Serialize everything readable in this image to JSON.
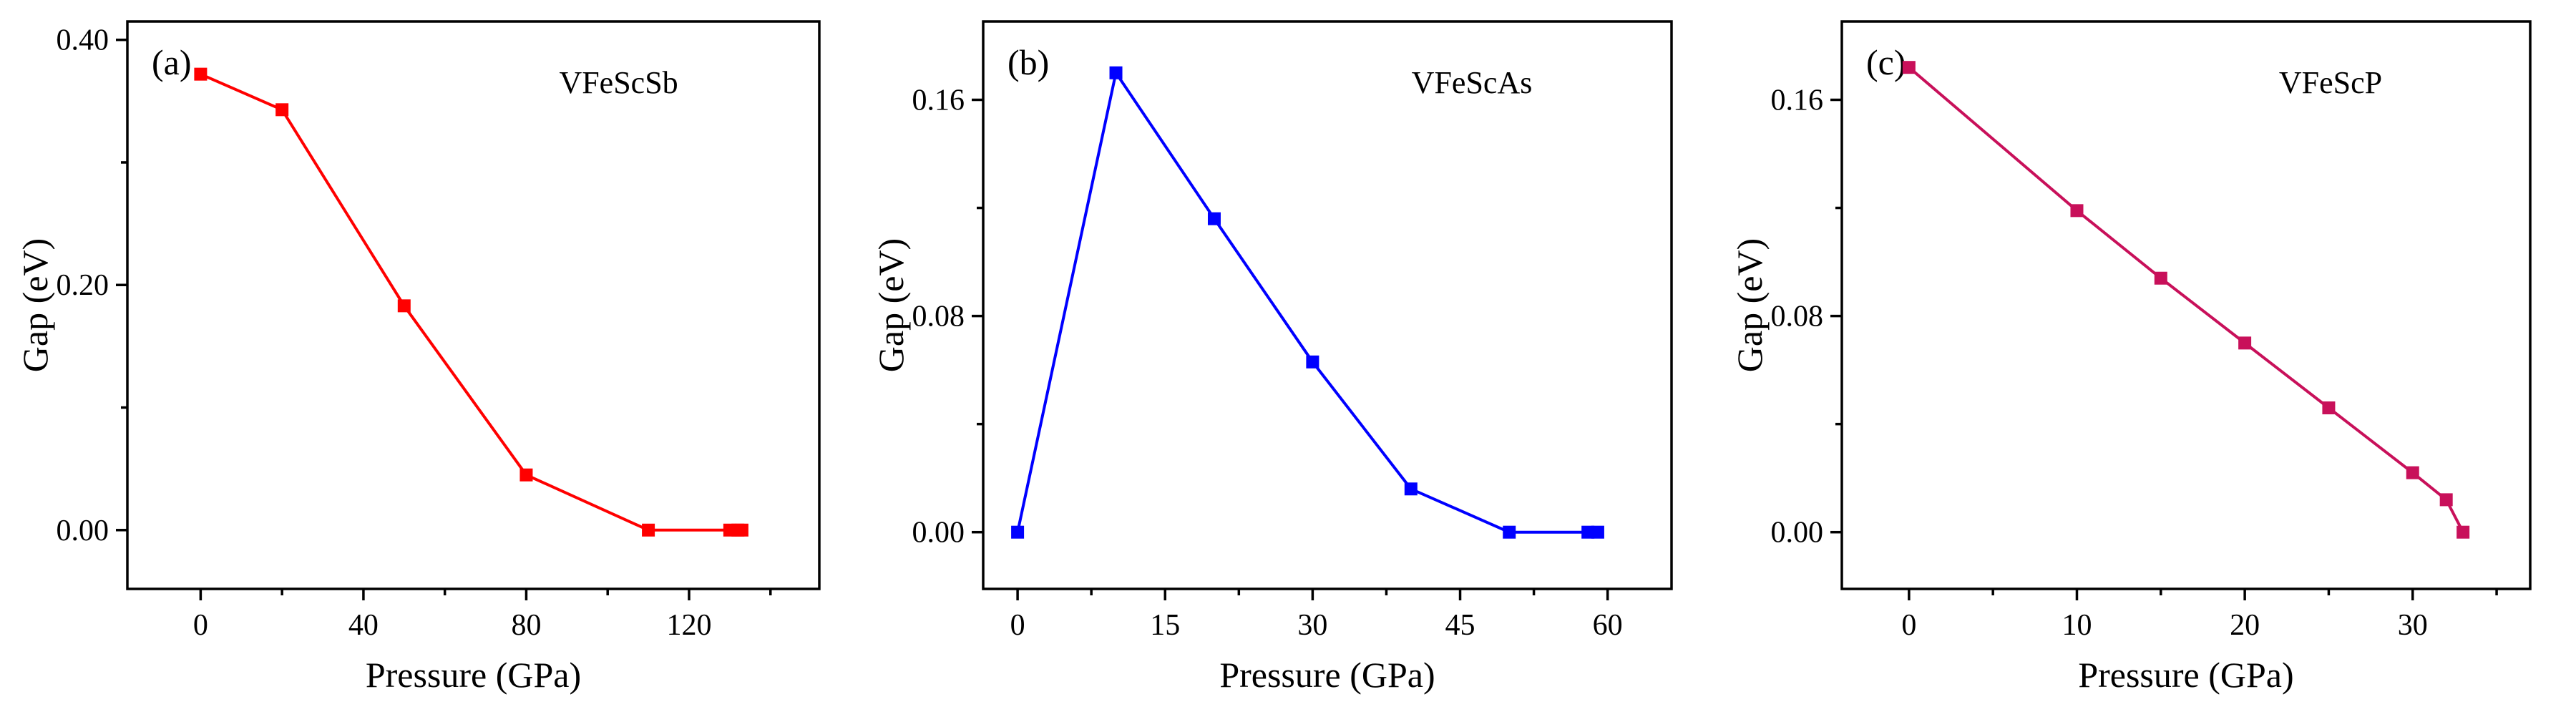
{
  "chart_data": [
    {
      "type": "line",
      "panel_label": "(a)",
      "title": "VFeScSb",
      "xlabel": "Pressure (GPa)",
      "ylabel": "Gap (eV)",
      "color": "#ff0000",
      "xlim": [
        -18,
        152
      ],
      "ylim": [
        -0.048,
        0.415
      ],
      "xticks": [
        0,
        40,
        80,
        120
      ],
      "xtick_labels": [
        "0",
        "40",
        "80",
        "120"
      ],
      "yticks": [
        0.0,
        0.2,
        0.4
      ],
      "ytick_labels": [
        "0.00",
        "0.20",
        "0.40"
      ],
      "x": [
        0,
        20,
        50,
        80,
        110,
        130,
        132,
        133
      ],
      "y": [
        0.372,
        0.343,
        0.183,
        0.045,
        0.0,
        0.0,
        0.0,
        0.0
      ]
    },
    {
      "type": "line",
      "panel_label": "(b)",
      "title": "VFeScAs",
      "xlabel": "Pressure (GPa)",
      "ylabel": "Gap (eV)",
      "color": "#0000ff",
      "xlim": [
        -3.5,
        66.5
      ],
      "ylim": [
        -0.021,
        0.189
      ],
      "xticks": [
        0,
        15,
        30,
        45,
        60
      ],
      "xtick_labels": [
        "0",
        "15",
        "30",
        "45",
        "60"
      ],
      "yticks": [
        0.0,
        0.08,
        0.16
      ],
      "ytick_labels": [
        "0.00",
        "0.08",
        "0.16"
      ],
      "x": [
        0,
        10,
        20,
        30,
        40,
        50,
        58,
        59
      ],
      "y": [
        0.0,
        0.17,
        0.116,
        0.063,
        0.016,
        0.0,
        0.0,
        0.0
      ]
    },
    {
      "type": "line",
      "panel_label": "(c)",
      "title": "VFeScP",
      "xlabel": "Pressure (GPa)",
      "ylabel": "Gap (eV)",
      "color": "#c8105a",
      "xlim": [
        -4,
        37
      ],
      "ylim": [
        -0.021,
        0.189
      ],
      "xticks": [
        0,
        10,
        20,
        30
      ],
      "xtick_labels": [
        "0",
        "10",
        "20",
        "30"
      ],
      "yticks": [
        0.0,
        0.08,
        0.16
      ],
      "ytick_labels": [
        "0.00",
        "0.08",
        "0.16"
      ],
      "x": [
        0,
        10,
        15,
        20,
        25,
        30,
        32,
        33
      ],
      "y": [
        0.172,
        0.119,
        0.094,
        0.07,
        0.046,
        0.022,
        0.012,
        0.0
      ]
    }
  ]
}
